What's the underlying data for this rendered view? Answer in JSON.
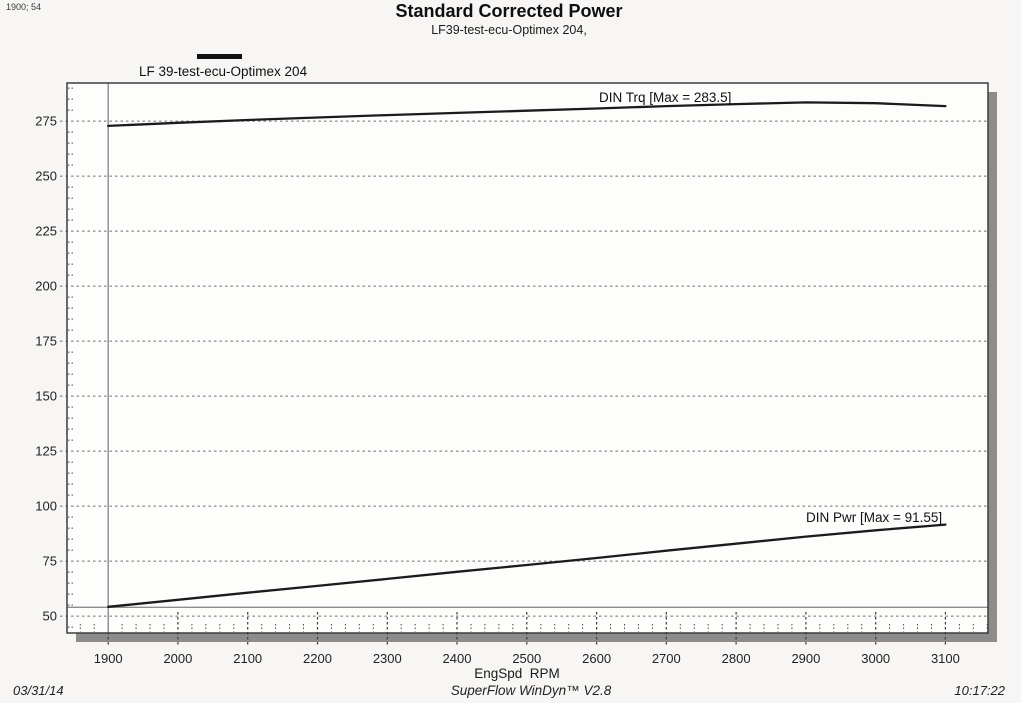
{
  "readout": "1900; 54",
  "header": {
    "title": "Standard Corrected Power",
    "subtitle": "LF39-test-ecu-Optimex 204,"
  },
  "legend": {
    "label": "LF 39-test-ecu-Optimex 204"
  },
  "footer": {
    "date": "03/31/14",
    "app": "SuperFlow WinDyn™ V2.8",
    "time": "10:17:22"
  },
  "chart_data": {
    "type": "line",
    "title": "Standard Corrected Power",
    "subtitle": "LF39-test-ecu-Optimex 204,",
    "xlabel": "EngSpd  RPM",
    "ylabel": "",
    "legend_entries": [
      "LF 39-test-ecu-Optimex 204"
    ],
    "x": [
      1900,
      2000,
      2100,
      2200,
      2300,
      2400,
      2500,
      2600,
      2700,
      2800,
      2900,
      3000,
      3100
    ],
    "series": [
      {
        "name": "DIN Trq",
        "annotation": "DIN Trq [Max = 283.5]",
        "max": 283.5,
        "values": [
          272.8,
          274.2,
          275.5,
          276.6,
          277.7,
          278.7,
          279.7,
          280.7,
          281.8,
          282.7,
          283.5,
          283.1,
          281.8
        ]
      },
      {
        "name": "DIN Pwr",
        "annotation": "DIN Pwr [Max = 91.55]",
        "max": 91.55,
        "values": [
          54.2,
          57.4,
          60.6,
          63.7,
          66.9,
          70.1,
          73.2,
          76.4,
          79.7,
          82.9,
          86.1,
          89.0,
          91.55
        ]
      }
    ],
    "x_ticks": [
      1900,
      2000,
      2100,
      2200,
      2300,
      2400,
      2500,
      2600,
      2700,
      2800,
      2900,
      3000,
      3100
    ],
    "y_ticks": [
      50,
      75,
      100,
      125,
      150,
      175,
      200,
      225,
      250,
      275
    ],
    "x_minor_step": 20,
    "y_minor_step": 5,
    "xlim": [
      1841,
      3161
    ],
    "ylim": [
      42.3,
      292.3
    ],
    "grid": "horizontal-dashed",
    "legend_position": "top-left",
    "cursor": {
      "x": 1900,
      "y": 54
    },
    "colors": {
      "curve": "#1b1b1b",
      "grid": "#6e6e6e",
      "cursor": "#8c8c8c",
      "shadow": "#8e8c8a",
      "border": "#3d3d3d",
      "plot_fill": "#fdfdfc"
    }
  }
}
